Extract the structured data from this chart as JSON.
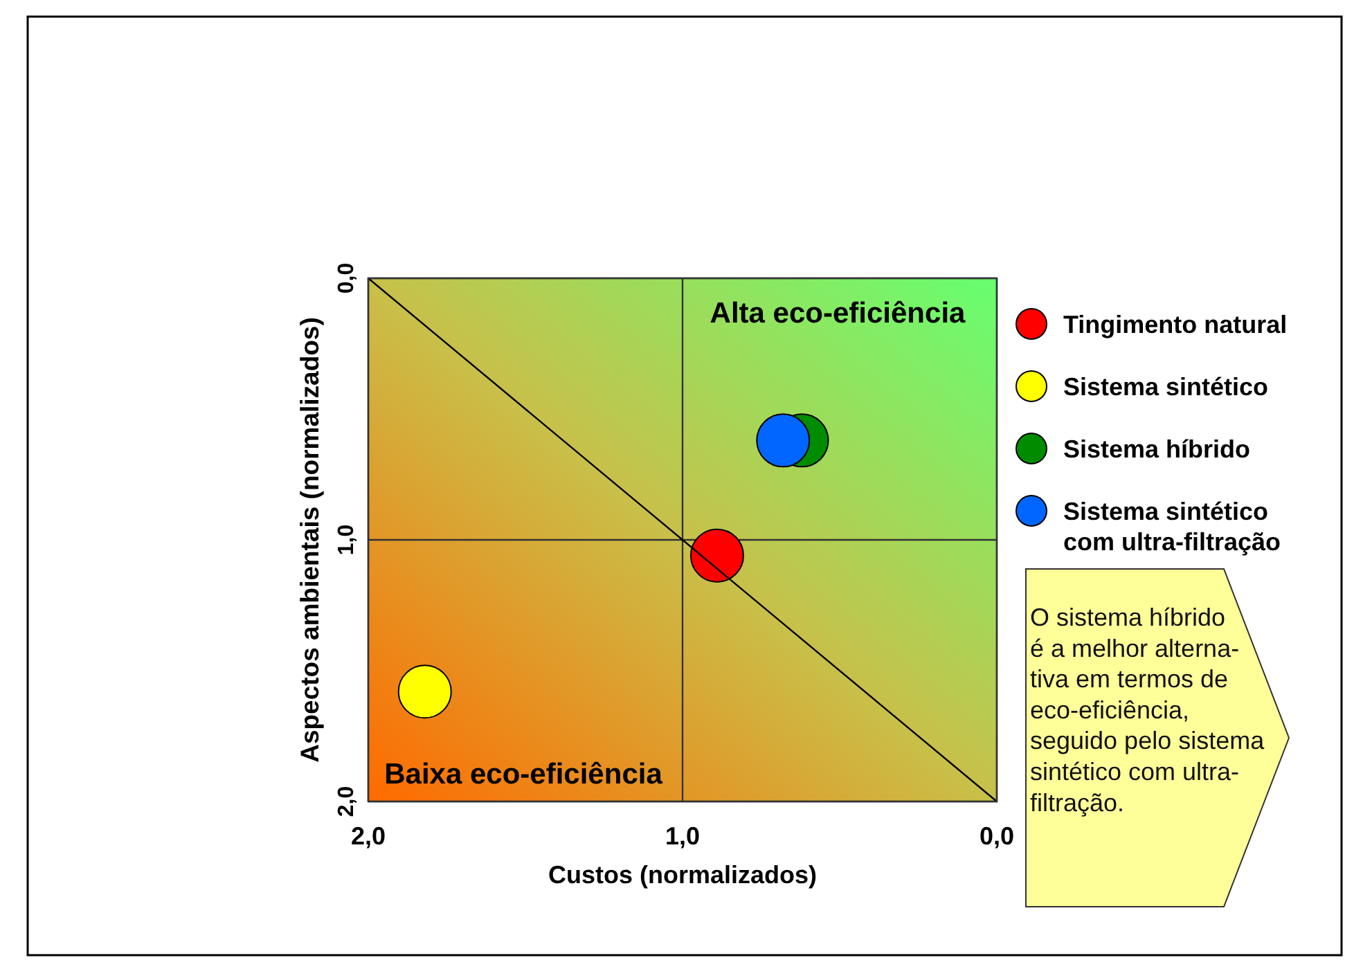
{
  "chart_data": {
    "type": "scatter",
    "xlabel": "Custos (normalizados)",
    "ylabel": "Aspectos ambientais (normalizados)",
    "xlim": [
      2,
      0
    ],
    "ylim": [
      2,
      0
    ],
    "xticks": [
      {
        "value": 2,
        "label": "2,0"
      },
      {
        "value": 1,
        "label": "1,0"
      },
      {
        "value": 0,
        "label": "0,0"
      }
    ],
    "yticks": [
      {
        "value": 0,
        "label": "0,0"
      },
      {
        "value": 1,
        "label": "1,0"
      },
      {
        "value": 2,
        "label": "2,0"
      }
    ],
    "series": [
      {
        "name": "Tingimento natural",
        "color": "#ff0000",
        "x": [
          0.89
        ],
        "values": [
          1.06
        ]
      },
      {
        "name": "Sistema sintético",
        "color": "#ffff00",
        "x": [
          1.82
        ],
        "values": [
          1.58
        ]
      },
      {
        "name": "Sistema híbrido",
        "color": "#008c00",
        "x": [
          0.62
        ],
        "values": [
          0.62
        ]
      },
      {
        "name": "Sistema sintético com ultra-filtração",
        "color": "#0066ff",
        "x": [
          0.68
        ],
        "values": [
          0.62
        ]
      },
      {
        "type": "line",
        "color": "#000000",
        "x": [
          2,
          0
        ],
        "values": [
          0,
          2
        ],
        "marker": "none"
      }
    ],
    "annotations": [
      "Alta eco-eficiência",
      "Baixa eco-eficiência",
      "O sistema híbrido\né a melhor alterna-\ntiva em termos de\neco-eficiência,\nseguido pelo sistema\nsintético com ultra-\nfiltração."
    ],
    "grid": true,
    "legend": "right",
    "marker": "circle"
  }
}
